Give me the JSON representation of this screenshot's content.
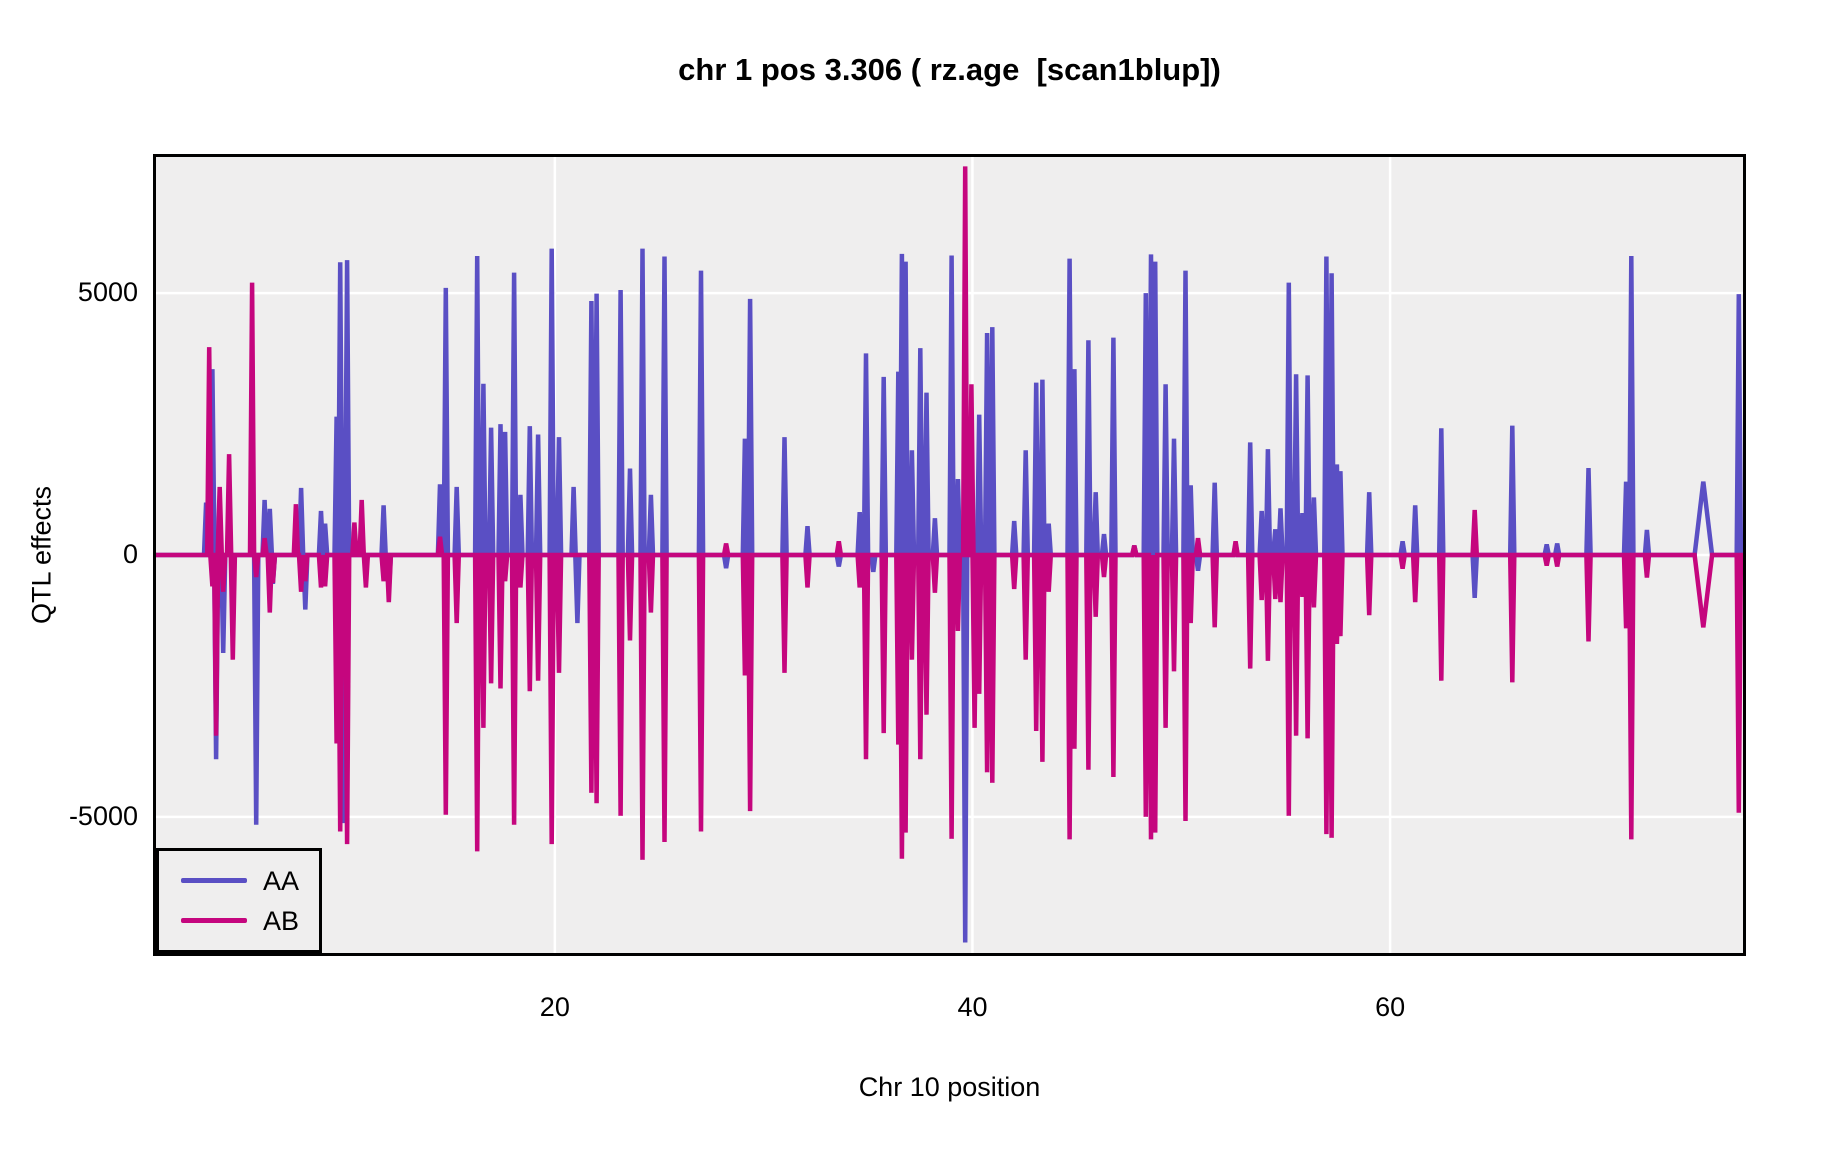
{
  "title": "chr 1 pos 3.306 ( rz.age  [scan1blup])",
  "axes": {
    "x": {
      "label": "Chr 10 position",
      "ticks": [
        20,
        40,
        60
      ],
      "tick_labels": [
        "20",
        "40",
        "60"
      ]
    },
    "y": {
      "label": "QTL effects",
      "ticks": [
        5000,
        0,
        -5000
      ],
      "tick_labels": [
        "5000",
        "0",
        "-5000"
      ]
    }
  },
  "legend": {
    "items": [
      {
        "label": "AA",
        "color": "#5A4FC4"
      },
      {
        "label": "AB",
        "color": "#C5067E"
      }
    ]
  },
  "colors": {
    "aa": "#5A4FC4",
    "ab": "#C5067E",
    "panel_background": "#efeeee",
    "gridline": "#ffffff",
    "panel_border": "#000000",
    "text": "#000000"
  },
  "chart_data": {
    "type": "line",
    "title": "chr 1 pos 3.306 ( rz.age  [scan1blup])",
    "xlabel": "Chr 10 position",
    "ylabel": "QTL effects",
    "xlim": [
      0.9,
      76.9
    ],
    "ylim": [
      -7600,
      7600
    ],
    "x_ticks": [
      20,
      40,
      60
    ],
    "y_ticks": [
      -5000,
      0,
      5000
    ],
    "grid": true,
    "legend_position": "bottom-left",
    "baseline": 0,
    "spike_halfwidth": 0.1,
    "series_names": [
      "AA",
      "AB"
    ],
    "note": "Spiky QTL effect traces; each marker row is [position_cM, AA_effect, AB_effect, optional_halfwidth]; trace returns to 0 between markers",
    "markers": [
      [
        3.3,
        1000,
        0
      ],
      [
        3.45,
        950,
        3970
      ],
      [
        3.6,
        3550,
        -600
      ],
      [
        3.78,
        -3900,
        -3450
      ],
      [
        3.95,
        -1000,
        1300
      ],
      [
        4.12,
        -1870,
        -700
      ],
      [
        4.4,
        300,
        1925
      ],
      [
        4.58,
        0,
        -2000
      ],
      [
        5.5,
        0,
        5200
      ],
      [
        5.7,
        -5150,
        -420
      ],
      [
        6.1,
        1050,
        320
      ],
      [
        6.35,
        880,
        -1100
      ],
      [
        6.5,
        -550,
        -530
      ],
      [
        7.6,
        0,
        970
      ],
      [
        7.85,
        1280,
        -700
      ],
      [
        8.05,
        -1040,
        -500
      ],
      [
        8.8,
        840,
        -620
      ],
      [
        9.0,
        600,
        -600
      ],
      [
        9.55,
        2640,
        -3600
      ],
      [
        9.72,
        5590,
        -5280
      ],
      [
        9.88,
        -5120,
        0
      ],
      [
        10.05,
        5630,
        -5520
      ],
      [
        10.4,
        0,
        620
      ],
      [
        10.75,
        0,
        1050
      ],
      [
        10.95,
        0,
        -620
      ],
      [
        11.8,
        950,
        -500
      ],
      [
        12.05,
        -700,
        -900
      ],
      [
        14.5,
        1350,
        350
      ],
      [
        14.78,
        5100,
        -4960
      ],
      [
        15.3,
        1300,
        -1300
      ],
      [
        16.28,
        5710,
        -5660
      ],
      [
        16.58,
        3270,
        -3300
      ],
      [
        16.95,
        2430,
        -2450
      ],
      [
        17.4,
        2500,
        -2550
      ],
      [
        17.62,
        2350,
        -500
      ],
      [
        18.05,
        5390,
        -5150
      ],
      [
        18.35,
        1150,
        -620
      ],
      [
        18.8,
        2460,
        -2600
      ],
      [
        19.2,
        2300,
        -2400
      ],
      [
        19.85,
        5850,
        -5520
      ],
      [
        20.2,
        2250,
        -2250
      ],
      [
        20.9,
        1300,
        0
      ],
      [
        21.08,
        -1300,
        0
      ],
      [
        21.75,
        4850,
        -4540
      ],
      [
        22.0,
        4990,
        -4740
      ],
      [
        23.15,
        5060,
        -4980
      ],
      [
        23.6,
        1650,
        -1630
      ],
      [
        24.2,
        5850,
        -5820
      ],
      [
        24.6,
        1150,
        -1100
      ],
      [
        25.25,
        5700,
        -5480
      ],
      [
        27.0,
        5430,
        -5280
      ],
      [
        28.2,
        -250,
        220
      ],
      [
        29.1,
        2220,
        -2300
      ],
      [
        29.35,
        4890,
        -4890
      ],
      [
        31.0,
        2250,
        -2250
      ],
      [
        32.1,
        550,
        -620
      ],
      [
        33.6,
        -220,
        260
      ],
      [
        34.6,
        820,
        -620
      ],
      [
        34.9,
        3850,
        -3900
      ],
      [
        35.25,
        -320,
        0
      ],
      [
        35.75,
        3400,
        -3400
      ],
      [
        36.45,
        3500,
        -3620
      ],
      [
        36.62,
        5750,
        -5800
      ],
      [
        36.8,
        5600,
        -5300
      ],
      [
        37.1,
        2000,
        -2000
      ],
      [
        37.5,
        3950,
        -3900
      ],
      [
        37.8,
        3100,
        -3050
      ],
      [
        38.2,
        700,
        -720
      ],
      [
        39.0,
        5720,
        -5420
      ],
      [
        39.3,
        1450,
        -1450
      ],
      [
        39.65,
        -7400,
        7420
      ],
      [
        39.95,
        700,
        3260
      ],
      [
        40.1,
        0,
        -3300
      ],
      [
        40.32,
        2680,
        -2650
      ],
      [
        40.7,
        4240,
        -4150
      ],
      [
        40.95,
        4350,
        -4350
      ],
      [
        42.0,
        650,
        -650
      ],
      [
        42.55,
        2000,
        -2000
      ],
      [
        43.05,
        3290,
        -3360
      ],
      [
        43.35,
        3350,
        -3950
      ],
      [
        43.65,
        600,
        -700
      ],
      [
        44.65,
        5660,
        -5430
      ],
      [
        44.88,
        3550,
        -3700
      ],
      [
        45.55,
        4100,
        -4100
      ],
      [
        45.9,
        1200,
        -1180
      ],
      [
        46.3,
        400,
        -420
      ],
      [
        46.75,
        4150,
        -4240
      ],
      [
        47.75,
        180,
        180
      ],
      [
        48.3,
        5000,
        -5000
      ],
      [
        48.55,
        5740,
        -5430
      ],
      [
        48.75,
        5600,
        -5300
      ],
      [
        49.25,
        3260,
        -3300
      ],
      [
        49.65,
        2220,
        -2220
      ],
      [
        50.2,
        5430,
        -5080
      ],
      [
        50.45,
        1330,
        -1300
      ],
      [
        50.8,
        -300,
        320
      ],
      [
        51.6,
        1380,
        -1380
      ],
      [
        52.6,
        220,
        260
      ],
      [
        53.3,
        2150,
        -2170
      ],
      [
        53.85,
        840,
        -860
      ],
      [
        54.15,
        2020,
        -2020
      ],
      [
        54.5,
        490,
        -840
      ],
      [
        54.75,
        890,
        -900
      ],
      [
        55.15,
        5200,
        -4980
      ],
      [
        55.5,
        3450,
        -3450
      ],
      [
        55.8,
        800,
        -800
      ],
      [
        56.05,
        3430,
        -3500
      ],
      [
        56.35,
        1100,
        -1000
      ],
      [
        56.95,
        5700,
        -5330
      ],
      [
        57.2,
        5380,
        -5400
      ],
      [
        57.45,
        1730,
        -1700
      ],
      [
        57.62,
        1600,
        -1550
      ],
      [
        59.0,
        1200,
        -1150
      ],
      [
        60.6,
        260,
        -260
      ],
      [
        61.2,
        950,
        -900
      ],
      [
        62.45,
        2420,
        -2400
      ],
      [
        64.05,
        -820,
        860
      ],
      [
        65.85,
        2470,
        -2430
      ],
      [
        67.5,
        200,
        -200
      ],
      [
        68.0,
        220,
        -220
      ],
      [
        69.5,
        1660,
        -1650
      ],
      [
        71.3,
        1400,
        -1400
      ],
      [
        71.55,
        5710,
        -5430
      ],
      [
        72.3,
        480,
        -430
      ],
      [
        75.0,
        1400,
        -1380,
        0.42
      ],
      [
        76.7,
        4980,
        -4920
      ]
    ]
  }
}
